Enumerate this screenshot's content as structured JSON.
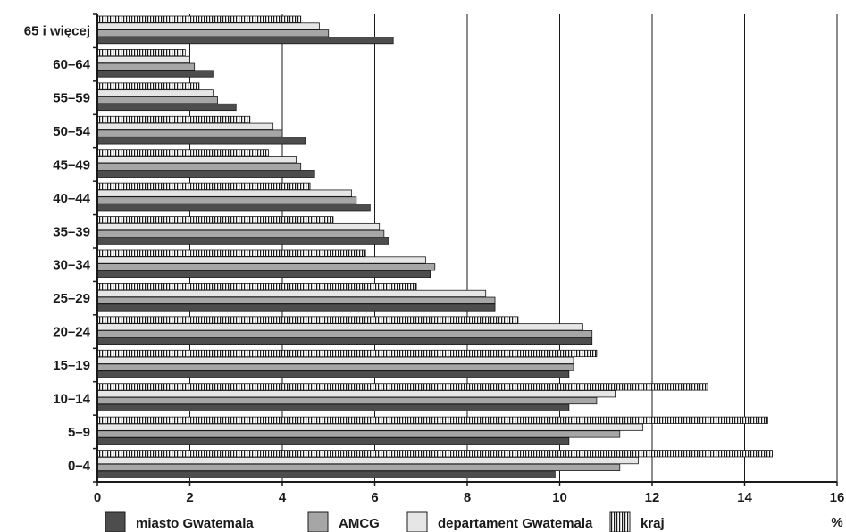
{
  "chart_data": {
    "type": "bar",
    "orientation": "horizontal",
    "categories": [
      "65 i więcej",
      "60–64",
      "55–59",
      "50–54",
      "45–49",
      "40–44",
      "35–39",
      "30–34",
      "25–29",
      "20–24",
      "15–19",
      "10–14",
      "5–9",
      "0–4"
    ],
    "series": [
      {
        "name": "kraj",
        "pattern": "vertical-stripes",
        "color": "#ffffff",
        "values": [
          4.4,
          1.9,
          2.2,
          3.3,
          3.7,
          4.6,
          5.1,
          5.8,
          6.9,
          9.1,
          10.8,
          13.2,
          14.5,
          14.6
        ]
      },
      {
        "name": "departament Gwatemala",
        "color": "#e6e6e6",
        "values": [
          4.8,
          2.0,
          2.5,
          3.8,
          4.3,
          5.5,
          6.1,
          7.1,
          8.4,
          10.5,
          10.3,
          11.2,
          11.8,
          11.7
        ]
      },
      {
        "name": "AMCG",
        "color": "#a6a6a6",
        "values": [
          5.0,
          2.1,
          2.6,
          4.0,
          4.4,
          5.6,
          6.2,
          7.3,
          8.6,
          10.7,
          10.3,
          10.8,
          11.3,
          11.3
        ]
      },
      {
        "name": "miasto Gwatemala",
        "color": "#4d4d4d",
        "values": [
          6.4,
          2.5,
          3.0,
          4.5,
          4.7,
          5.9,
          6.3,
          7.2,
          8.6,
          10.7,
          10.2,
          10.2,
          10.2,
          9.9
        ]
      }
    ],
    "x_ticks": [
      "0",
      "2",
      "4",
      "6",
      "8",
      "10",
      "12",
      "14",
      "16"
    ],
    "xlim": [
      0,
      16
    ],
    "xlabel": "%",
    "ylabel": "",
    "title": "",
    "legend": {
      "placement": "bottom",
      "order": [
        "miasto Gwatemala",
        "AMCG",
        "departament Gwatemala",
        "kraj"
      ]
    },
    "grid": "vertical"
  }
}
